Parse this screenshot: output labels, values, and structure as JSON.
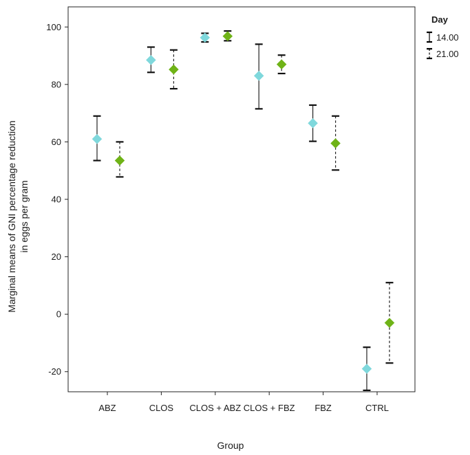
{
  "chart_data": {
    "type": "scatter",
    "title": "",
    "xlabel": "Group",
    "ylabel_lines": [
      "Marginal means of GNI percentage reduction",
      "in eggs per gram"
    ],
    "categories": [
      "ABZ",
      "CLOS",
      "CLOS + ABZ",
      "CLOS + FBZ",
      "FBZ",
      "CTRL"
    ],
    "ylim": [
      -27,
      107
    ],
    "yticks": [
      "-20",
      "0",
      "20",
      "40",
      "60",
      "80",
      "100"
    ],
    "grid": false,
    "legend": {
      "title": "Day",
      "placement": "right-top",
      "entries": [
        "14.00",
        "21.00"
      ]
    },
    "series": [
      {
        "name": "14.00",
        "color": "#7fd8dc",
        "line_style": "solid",
        "marker": "diamond",
        "values": [
          61,
          88.5,
          96.3,
          83,
          66.5,
          -19
        ],
        "lower": [
          53.5,
          84.2,
          94.8,
          71.5,
          60.2,
          -26.5
        ],
        "upper": [
          69,
          93,
          97.8,
          94,
          72.8,
          -11.5
        ]
      },
      {
        "name": "21.00",
        "color": "#6fb317",
        "line_style": "dashed",
        "marker": "diamond",
        "values": [
          53.5,
          85.2,
          96.8,
          87,
          59.5,
          -3
        ],
        "lower": [
          47.8,
          78.5,
          95.2,
          83.8,
          50.2,
          -17
        ],
        "upper": [
          60,
          92,
          98.6,
          90.2,
          69,
          11
        ]
      }
    ]
  }
}
